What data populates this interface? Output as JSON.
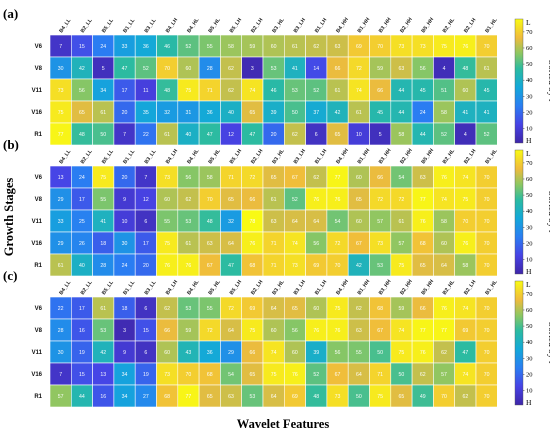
{
  "chart_data": [
    {
      "type": "heatmap",
      "panel_label": "(a)",
      "row_labels": [
        "V6",
        "V8",
        "V11",
        "V16",
        "R1"
      ],
      "col_labels": [
        "B4_LL",
        "B2_LL",
        "B5_LL",
        "B1_LL",
        "B3_LL",
        "B4_LH",
        "B4_HL",
        "B5_HL",
        "B5_LH",
        "B2_LH",
        "B3_HL",
        "B3_LH",
        "B1_LH",
        "B4_HH",
        "B1_HH",
        "B3_HH",
        "B2_HH",
        "B5_HH",
        "B2_HL",
        "B2_LH",
        "B1_HL"
      ],
      "values": [
        [
          7,
          15,
          24,
          33,
          36,
          46,
          52,
          55,
          58,
          59,
          60,
          61,
          62,
          63,
          69,
          70,
          73,
          73,
          75,
          76,
          70
        ],
        [
          30,
          42,
          5,
          47,
          52,
          70,
          60,
          28,
          62,
          3,
          53,
          41,
          14,
          66,
          72,
          59,
          63,
          56,
          4,
          48,
          61
        ],
        [
          73,
          56,
          34,
          17,
          11,
          48,
          75,
          71,
          62,
          74,
          46,
          53,
          52,
          61,
          74,
          66,
          44,
          45,
          51,
          60,
          45
        ],
        [
          75,
          65,
          61,
          20,
          35,
          32,
          31,
          36,
          40,
          65,
          39,
          50,
          37,
          42,
          61,
          45,
          44,
          24,
          58,
          41,
          41
        ],
        [
          77,
          48,
          50,
          7,
          22,
          61,
          40,
          47,
          12,
          47,
          20,
          62,
          6,
          65,
          10,
          5,
          58,
          44,
          52,
          4,
          52
        ]
      ]
    },
    {
      "type": "heatmap",
      "panel_label": "(b)",
      "row_labels": [
        "V6",
        "V8",
        "V11",
        "V16",
        "R1"
      ],
      "col_labels": [
        "B4_LL",
        "B2_LL",
        "B5_LL",
        "B1_LL",
        "B3_LL",
        "B4_LH",
        "B4_HL",
        "B5_HL",
        "B5_LH",
        "B2_LH",
        "B3_HL",
        "B3_LH",
        "B1_LH",
        "B4_HH",
        "B1_HH",
        "B3_HH",
        "B2_HH",
        "B5_HH",
        "B2_HL",
        "B2_LH",
        "B1_HL"
      ],
      "values": [
        [
          13,
          24,
          75,
          20,
          7,
          73,
          56,
          58,
          71,
          72,
          65,
          67,
          62,
          77,
          60,
          66,
          54,
          63,
          76,
          74,
          70
        ],
        [
          29,
          17,
          55,
          9,
          12,
          60,
          62,
          70,
          65,
          66,
          61,
          52,
          76,
          76,
          65,
          72,
          72,
          77,
          74,
          75,
          70
        ],
        [
          33,
          25,
          41,
          10,
          6,
          55,
          53,
          48,
          32,
          78,
          63,
          64,
          64,
          54,
          60,
          57,
          61,
          76,
          58,
          70,
          70
        ],
        [
          29,
          26,
          18,
          30,
          17,
          75,
          61,
          63,
          64,
          76,
          71,
          74,
          56,
          72,
          67,
          73,
          57,
          68,
          60,
          76,
          70
        ],
        [
          61,
          40,
          28,
          24,
          20,
          76,
          76,
          67,
          47,
          68,
          71,
          73,
          69,
          70,
          42,
          53,
          75,
          65,
          64,
          58,
          70
        ]
      ]
    },
    {
      "type": "heatmap",
      "panel_label": "(c)",
      "row_labels": [
        "V6",
        "V8",
        "V11",
        "V16",
        "R1"
      ],
      "col_labels": [
        "B4_LL",
        "B2_LL",
        "B5_LL",
        "B1_LL",
        "B3_LL",
        "B4_LH",
        "B4_HL",
        "B5_HL",
        "B5_LH",
        "B2_LH",
        "B3_HL",
        "B3_LH",
        "B1_LH",
        "B4_HH",
        "B1_HH",
        "B3_HH",
        "B2_HH",
        "B5_HH",
        "B2_HL",
        "B2_LH",
        "B1_HL"
      ],
      "values": [
        [
          22,
          17,
          61,
          18,
          6,
          62,
          53,
          55,
          72,
          69,
          64,
          65,
          60,
          75,
          62,
          68,
          59,
          66,
          76,
          74,
          70
        ],
        [
          28,
          16,
          53,
          3,
          15,
          66,
          59,
          72,
          64,
          75,
          60,
          56,
          76,
          76,
          63,
          67,
          74,
          77,
          77,
          69,
          70
        ],
        [
          30,
          19,
          42,
          9,
          6,
          60,
          43,
          36,
          29,
          66,
          74,
          60,
          39,
          56,
          55,
          50,
          75,
          76,
          62,
          47,
          70
        ],
        [
          7,
          15,
          13,
          34,
          19,
          73,
          70,
          68,
          54,
          65,
          75,
          76,
          52,
          67,
          64,
          71,
          50,
          62,
          57,
          74,
          70
        ],
        [
          57,
          44,
          16,
          34,
          27,
          68,
          77,
          65,
          63,
          53,
          64,
          69,
          48,
          73,
          50,
          75,
          65,
          49,
          70,
          62,
          70
        ]
      ]
    }
  ],
  "colorbar": {
    "label": "Sorted by r",
    "ticks": [
      10,
      20,
      30,
      40,
      50,
      60,
      70
    ],
    "top_label": "L",
    "bottom_label": "H",
    "range": [
      1,
      78
    ]
  },
  "axes": {
    "y_title": "Growth Stages",
    "x_title": "Wavelet Features"
  },
  "colors": {
    "low": "#3b22b8",
    "mid": "#23b6a8",
    "high": "#f9f11f"
  }
}
